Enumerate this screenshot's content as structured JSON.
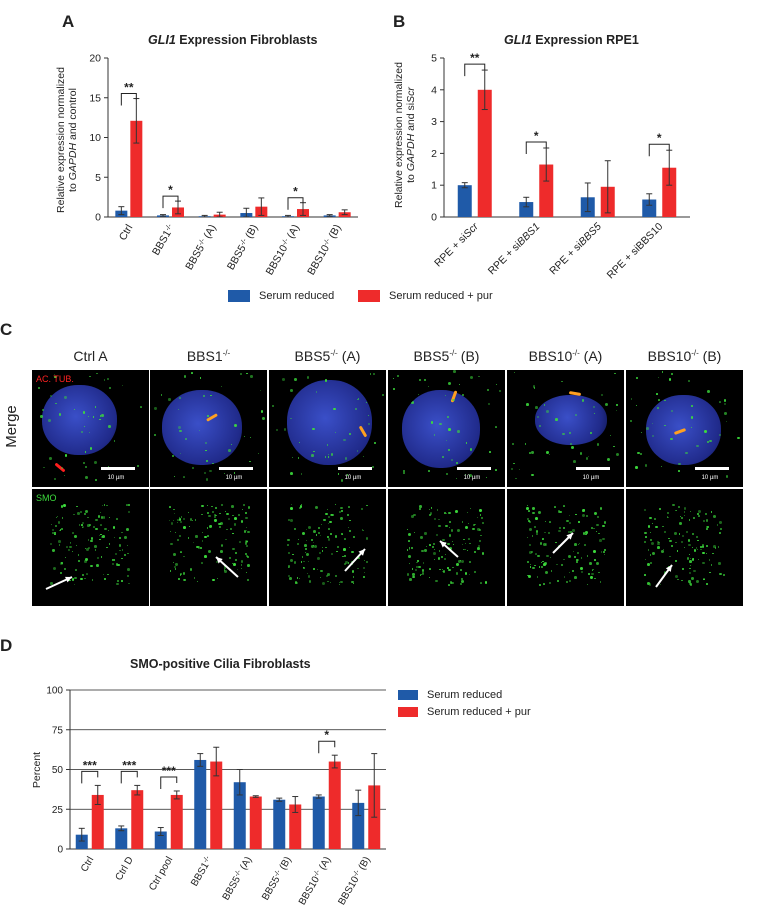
{
  "panels": {
    "A": "A",
    "B": "B",
    "C": "C",
    "D": "D"
  },
  "colors": {
    "reduced": "#1f5aa8",
    "pur": "#ee2b2b",
    "axis": "#333333",
    "sig": "#222222"
  },
  "legend_top": {
    "reduced": "Serum reduced",
    "pur": "Serum reduced + pur"
  },
  "legend_d": {
    "reduced": "Serum reduced",
    "pur": "Serum reduced + pur"
  },
  "chart_data": [
    {
      "type": "bar",
      "title_gene": "GLI1",
      "title_rest": " Expression Fibroblasts",
      "ylabel_line1": "Relative expression normalized",
      "ylabel_line2_pre": "to ",
      "ylabel_line2_gene": "GAPDH",
      "ylabel_line2_post": " and control",
      "ylim": [
        0,
        20
      ],
      "yticks": [
        0,
        5,
        10,
        15,
        20
      ],
      "categories": [
        {
          "base": "Ctrl",
          "sup": ""
        },
        {
          "base": "BBS1",
          "sup": "-/-"
        },
        {
          "base": "BBS5",
          "sup": "-/-",
          "suffix": " (A)"
        },
        {
          "base": "BBS5",
          "sup": "-/-",
          "suffix": " (B)"
        },
        {
          "base": "BBS10",
          "sup": "-/-",
          "suffix": " (A)"
        },
        {
          "base": "BBS10",
          "sup": "-/-",
          "suffix": " (B)"
        }
      ],
      "series": [
        {
          "name": "Serum reduced",
          "values": [
            0.8,
            0.2,
            0.1,
            0.5,
            0.1,
            0.2
          ],
          "err": [
            0.5,
            0.1,
            0.1,
            0.6,
            0.1,
            0.1
          ]
        },
        {
          "name": "Serum reduced + pur",
          "values": [
            12.1,
            1.2,
            0.3,
            1.3,
            1.0,
            0.6
          ],
          "err": [
            2.8,
            0.8,
            0.3,
            1.1,
            0.8,
            0.3
          ]
        }
      ],
      "sig": [
        {
          "cat": 0,
          "label": "**"
        },
        {
          "cat": 1,
          "label": "*"
        },
        {
          "cat": 4,
          "label": "*"
        }
      ]
    },
    {
      "type": "bar",
      "title_gene": "GLI1",
      "title_rest": " Expression RPE1",
      "ylabel_line1": "Relative expression normalized",
      "ylabel_line2_pre": "to ",
      "ylabel_line2_gene": "GAPDH",
      "ylabel_line2_post": " and si",
      "ylabel_line2_gene2": "Scr",
      "ylim": [
        0,
        5
      ],
      "yticks": [
        0,
        1,
        2,
        3,
        4,
        5
      ],
      "categories": [
        {
          "pre": "RPE + si",
          "it": "Scr"
        },
        {
          "pre": "RPE + si",
          "it": "BBS1"
        },
        {
          "pre": "RPE + si",
          "it": "BBS5"
        },
        {
          "pre": "RPE + siBBS10",
          "it": ""
        }
      ],
      "series": [
        {
          "name": "Serum reduced",
          "values": [
            1.0,
            0.47,
            0.62,
            0.55
          ],
          "err": [
            0.08,
            0.15,
            0.45,
            0.18
          ]
        },
        {
          "name": "Serum reduced + pur",
          "values": [
            4.0,
            1.65,
            0.95,
            1.55
          ],
          "err": [
            0.62,
            0.52,
            0.82,
            0.55
          ]
        }
      ],
      "sig": [
        {
          "cat": 0,
          "label": "**"
        },
        {
          "cat": 1,
          "label": "*"
        },
        {
          "cat": 3,
          "label": "*"
        }
      ]
    },
    {
      "type": "bar",
      "title": "SMO-positive Cilia Fibroblasts",
      "ylabel": "Percent",
      "ylim": [
        0,
        100
      ],
      "yticks": [
        0,
        25,
        50,
        75,
        100
      ],
      "hlines": [
        25,
        50,
        75,
        100
      ],
      "categories": [
        {
          "base": "Ctrl",
          "sup": ""
        },
        {
          "base": "Ctrl D",
          "sup": ""
        },
        {
          "base": "Ctrl pool",
          "sup": ""
        },
        {
          "base": "BBS1",
          "sup": "-/-"
        },
        {
          "base": "BBS5",
          "sup": "-/-",
          "suffix": " (A)"
        },
        {
          "base": "BBS5",
          "sup": "-/-",
          "suffix": " (B)"
        },
        {
          "base": "BBS10",
          "sup": "-/-",
          "suffix": " (A)"
        },
        {
          "base": "BBS10",
          "sup": "-/-",
          "suffix": " (B)"
        }
      ],
      "series": [
        {
          "name": "Serum reduced",
          "values": [
            9,
            13,
            11,
            56,
            42,
            31,
            33,
            29
          ],
          "err": [
            4,
            1.5,
            2.5,
            4,
            8,
            1,
            1,
            8
          ]
        },
        {
          "name": "Serum reduced + pur",
          "values": [
            34,
            37,
            34,
            55,
            33,
            28,
            55,
            40
          ],
          "err": [
            6,
            3,
            2.5,
            9,
            0.5,
            5,
            4,
            20
          ]
        }
      ],
      "sig": [
        {
          "cat": 0,
          "label": "***"
        },
        {
          "cat": 1,
          "label": "***"
        },
        {
          "cat": 2,
          "label": "***"
        },
        {
          "cat": 6,
          "label": "*"
        }
      ]
    }
  ],
  "microscopy": {
    "columns": [
      {
        "base": "Ctrl A",
        "sup": "",
        "suffix": ""
      },
      {
        "base": "BBS1",
        "sup": "-/-",
        "suffix": ""
      },
      {
        "base": "BBS5",
        "sup": "-/-",
        "suffix": " (A)"
      },
      {
        "base": "BBS5",
        "sup": "-/-",
        "suffix": " (B)"
      },
      {
        "base": "BBS10",
        "sup": "-/-",
        "suffix": " (A)"
      },
      {
        "base": "BBS10",
        "sup": "-/-",
        "suffix": " (B)"
      }
    ],
    "row_label": "Merge",
    "merge_channel": "AC. TUB.",
    "smo_channel": "SMO",
    "scale_label": "10 µm"
  }
}
